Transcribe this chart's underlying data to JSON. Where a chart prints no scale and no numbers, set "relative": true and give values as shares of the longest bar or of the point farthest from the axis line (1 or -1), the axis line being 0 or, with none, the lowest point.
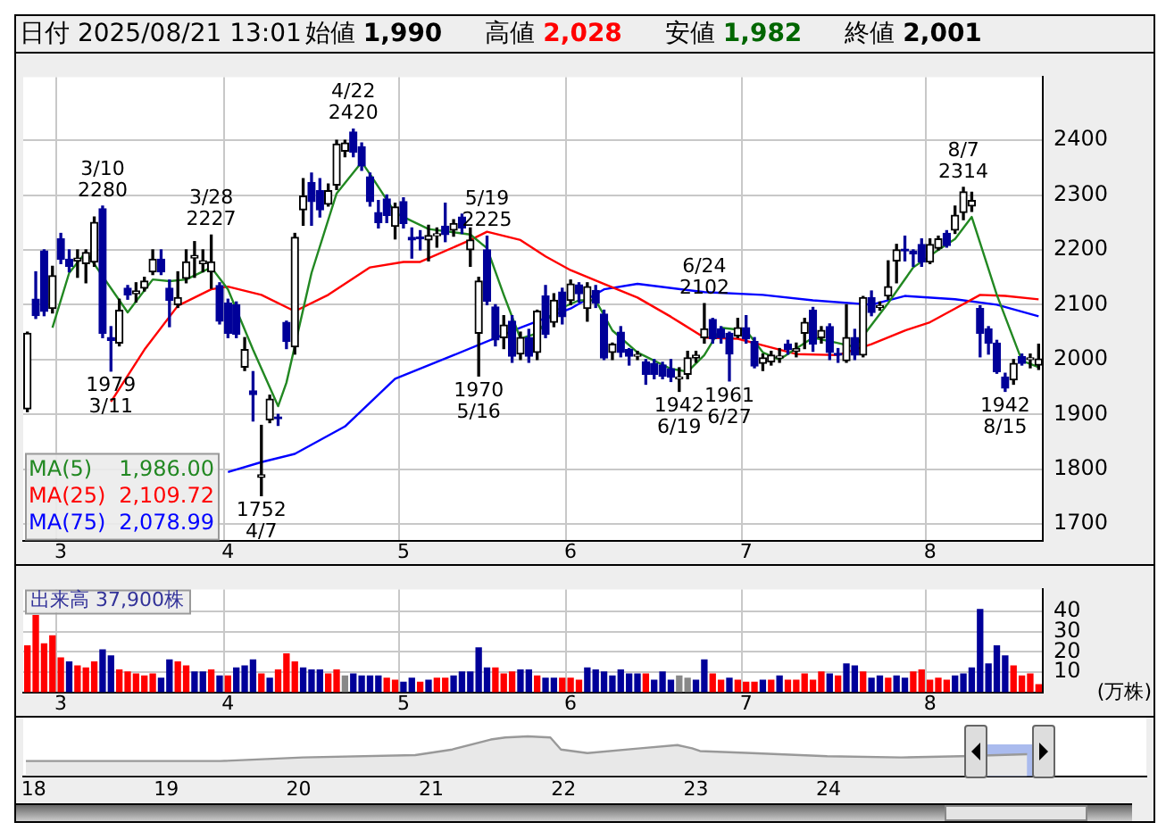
{
  "chart_data": [
    {
      "type": "candlestick",
      "title": "日付 2025/08/21 13:01",
      "categories": [
        null,
        null,
        null,
        null,
        "3",
        null,
        null,
        null,
        null,
        null,
        null,
        null,
        null,
        null,
        null,
        null,
        null,
        null,
        null,
        null,
        null,
        null,
        null,
        null,
        "4",
        null,
        null,
        null,
        null,
        null,
        null,
        null,
        null,
        null,
        null,
        null,
        null,
        null,
        null,
        null,
        null,
        null,
        null,
        null,
        null,
        "5",
        null,
        null,
        null,
        null,
        null,
        null,
        null,
        null,
        null,
        null,
        null,
        null,
        null,
        null,
        null,
        null,
        null,
        null,
        null,
        "6",
        null,
        null,
        null,
        null,
        null,
        null,
        null,
        null,
        null,
        null,
        null,
        null,
        null,
        null,
        null,
        null,
        null,
        null,
        null,
        null,
        "7",
        null,
        null,
        null,
        null,
        null,
        null,
        null,
        null,
        null,
        null,
        null,
        null,
        null,
        null,
        null,
        null,
        null,
        null,
        null,
        null,
        null,
        "8",
        null,
        null,
        null,
        null,
        null,
        null,
        null,
        null,
        null,
        null,
        null,
        null,
        null
      ],
      "ohlc": [
        [
          1910,
          2050,
          1905,
          2048
        ],
        [
          2110,
          2160,
          2075,
          2080
        ],
        [
          2198,
          2200,
          2080,
          2088
        ],
        [
          2093,
          2170,
          2085,
          2153
        ],
        [
          2220,
          2230,
          2175,
          2183
        ],
        [
          2183,
          2200,
          2160,
          2170
        ],
        [
          2180,
          2200,
          2150,
          2185
        ],
        [
          2175,
          2200,
          2140,
          2195
        ],
        [
          2178,
          2260,
          2170,
          2250
        ],
        [
          2275,
          2280,
          2040,
          2048
        ],
        [
          2040,
          2060,
          1979,
          2035
        ],
        [
          2030,
          2110,
          2025,
          2090
        ],
        [
          2130,
          2135,
          2110,
          2118
        ],
        [
          2120,
          2140,
          2105,
          2125
        ],
        [
          2130,
          2150,
          2125,
          2143
        ],
        [
          2160,
          2200,
          2155,
          2183
        ],
        [
          2183,
          2200,
          2155,
          2160
        ],
        [
          2130,
          2145,
          2060,
          2108
        ],
        [
          2100,
          2160,
          2095,
          2113
        ],
        [
          2148,
          2200,
          2140,
          2178
        ],
        [
          2185,
          2215,
          2150,
          2190
        ],
        [
          2175,
          2200,
          2160,
          2180
        ],
        [
          2160,
          2227,
          2130,
          2178
        ],
        [
          2135,
          2140,
          2065,
          2070
        ],
        [
          2103,
          2110,
          2040,
          2048
        ],
        [
          2100,
          2105,
          2040,
          2046
        ],
        [
          1986,
          2040,
          1980,
          2018
        ],
        [
          1943,
          1978,
          1888,
          1936
        ],
        [
          1785,
          1880,
          1752,
          1790
        ],
        [
          1890,
          1935,
          1885,
          1928
        ],
        [
          1895,
          1900,
          1880,
          1892
        ],
        [
          2068,
          2070,
          2020,
          2033
        ],
        [
          2023,
          2230,
          2010,
          2223
        ],
        [
          2273,
          2330,
          2245,
          2298
        ],
        [
          2323,
          2340,
          2245,
          2288
        ],
        [
          2308,
          2330,
          2260,
          2273
        ],
        [
          2283,
          2320,
          2280,
          2308
        ],
        [
          2318,
          2400,
          2310,
          2393
        ],
        [
          2380,
          2400,
          2370,
          2395
        ],
        [
          2415,
          2420,
          2370,
          2378
        ],
        [
          2388,
          2395,
          2345,
          2353
        ],
        [
          2333,
          2340,
          2280,
          2288
        ],
        [
          2268,
          2290,
          2240,
          2250
        ],
        [
          2293,
          2300,
          2250,
          2263
        ],
        [
          2243,
          2285,
          2220,
          2278
        ],
        [
          2288,
          2295,
          2240,
          2248
        ],
        [
          2223,
          2240,
          2185,
          2218
        ],
        [
          2222,
          2235,
          2200,
          2220
        ],
        [
          2218,
          2245,
          2180,
          2226
        ],
        [
          2226,
          2240,
          2205,
          2228
        ],
        [
          2243,
          2285,
          2215,
          2228
        ],
        [
          2236,
          2255,
          2225,
          2248
        ],
        [
          2260,
          2265,
          2230,
          2240
        ],
        [
          2200,
          2240,
          2170,
          2218
        ],
        [
          2048,
          2150,
          1970,
          2143
        ],
        [
          2200,
          2225,
          2100,
          2106
        ],
        [
          2096,
          2100,
          2025,
          2036
        ],
        [
          2040,
          2080,
          2020,
          2063
        ],
        [
          2070,
          2080,
          1995,
          2006
        ],
        [
          2010,
          2050,
          2000,
          2040
        ],
        [
          2040,
          2055,
          1995,
          2006
        ],
        [
          2013,
          2090,
          2000,
          2088
        ],
        [
          2116,
          2135,
          2040,
          2046
        ],
        [
          2068,
          2120,
          2060,
          2108
        ],
        [
          2123,
          2130,
          2065,
          2078
        ],
        [
          2108,
          2145,
          2100,
          2138
        ],
        [
          2136,
          2140,
          2105,
          2120
        ],
        [
          2093,
          2140,
          2070,
          2133
        ],
        [
          2126,
          2135,
          2095,
          2103
        ],
        [
          2083,
          2090,
          2000,
          2003
        ],
        [
          2013,
          2030,
          2000,
          2028
        ],
        [
          2050,
          2060,
          2005,
          2013
        ],
        [
          2018,
          2020,
          1990,
          2006
        ],
        [
          2006,
          2015,
          2000,
          2008
        ],
        [
          1996,
          2000,
          1955,
          1973
        ],
        [
          1993,
          2000,
          1965,
          1973
        ],
        [
          1990,
          1995,
          1965,
          1970
        ],
        [
          1983,
          2000,
          1960,
          1968
        ],
        [
          1965,
          1985,
          1942,
          1968
        ],
        [
          1973,
          2015,
          1965,
          2003
        ],
        [
          2003,
          2015,
          1995,
          2008
        ],
        [
          2040,
          2102,
          2030,
          2056
        ],
        [
          2073,
          2075,
          2030,
          2038
        ],
        [
          2056,
          2060,
          2030,
          2040
        ],
        [
          2048,
          2050,
          1961,
          2010
        ],
        [
          2043,
          2075,
          2040,
          2058
        ],
        [
          2058,
          2080,
          2030,
          2038
        ],
        [
          2033,
          2040,
          1985,
          1988
        ],
        [
          1993,
          2010,
          1980,
          2003
        ],
        [
          1996,
          2015,
          1990,
          2008
        ],
        [
          2003,
          2020,
          1995,
          2005
        ],
        [
          2028,
          2035,
          2010,
          2018
        ],
        [
          2015,
          2030,
          2005,
          2020
        ],
        [
          2048,
          2075,
          2020,
          2068
        ],
        [
          2090,
          2095,
          2015,
          2028
        ],
        [
          2040,
          2060,
          2030,
          2053
        ],
        [
          2060,
          2065,
          2000,
          2013
        ],
        [
          2010,
          2020,
          1995,
          2008
        ],
        [
          1998,
          2100,
          1995,
          2040
        ],
        [
          2040,
          2055,
          2000,
          2008
        ],
        [
          2008,
          2115,
          2005,
          2113
        ],
        [
          2113,
          2125,
          2080,
          2086
        ],
        [
          2095,
          2105,
          2090,
          2098
        ],
        [
          2116,
          2180,
          2110,
          2133
        ],
        [
          2180,
          2210,
          2140,
          2200
        ],
        [
          2200,
          2225,
          2180,
          2198
        ],
        [
          2198,
          2200,
          2170,
          2193
        ],
        [
          2210,
          2220,
          2170,
          2178
        ],
        [
          2178,
          2220,
          2175,
          2210
        ],
        [
          2203,
          2225,
          2200,
          2220
        ],
        [
          2230,
          2235,
          2205,
          2208
        ],
        [
          2236,
          2280,
          2230,
          2263
        ],
        [
          2268,
          2314,
          2255,
          2306
        ],
        [
          2280,
          2305,
          2270,
          2290
        ],
        [
          2093,
          2098,
          2005,
          2048
        ],
        [
          2056,
          2060,
          2010,
          2030
        ],
        [
          2030,
          2035,
          1975,
          1978
        ],
        [
          1968,
          1975,
          1942,
          1948
        ],
        [
          1963,
          2000,
          1955,
          1993
        ],
        [
          2005,
          2010,
          1990,
          1993
        ],
        [
          2000,
          2010,
          1985,
          2003
        ],
        [
          1990,
          2028,
          1982,
          2001
        ]
      ],
      "series": [
        {
          "type": "line",
          "name": "MA(5) 1,986.00",
          "color": "#228822",
          "values": [
            null,
            null,
            null,
            2058,
            null,
            2158,
            null,
            2196,
            null,
            null,
            null,
            null,
            2086,
            null,
            null,
            2146,
            null,
            2143,
            null,
            2146,
            null,
            null,
            2168,
            null,
            2128,
            null,
            null,
            2018,
            null,
            null,
            1915,
            1958,
            null,
            null,
            2158,
            null,
            null,
            2303,
            null,
            null,
            2360,
            2338,
            null,
            null,
            2268,
            2260,
            null,
            null,
            2238,
            null,
            null,
            null,
            null,
            2228,
            null,
            2203,
            null,
            2118,
            null,
            2038,
            null,
            2048,
            null,
            2088,
            null,
            null,
            2108,
            null,
            2108,
            null,
            2053,
            null,
            null,
            2013,
            null,
            null,
            null,
            1983,
            null,
            1978,
            null,
            2008,
            null,
            2058,
            null,
            null,
            2053,
            null,
            2013,
            null,
            2000,
            null,
            null,
            null,
            2040,
            null,
            null,
            2030,
            null,
            2023,
            null,
            null,
            null,
            2103,
            null,
            null,
            2168,
            null,
            null,
            2200,
            null,
            2220,
            null,
            2260,
            null,
            null,
            2118,
            null,
            null,
            1998,
            null,
            1986
          ]
        },
        {
          "type": "line",
          "name": "MA(25) 2,109.72",
          "color": "#ff0000",
          "values": [
            null,
            null,
            null,
            null,
            null,
            null,
            null,
            null,
            null,
            null,
            1923,
            null,
            null,
            null,
            2018,
            null,
            null,
            null,
            2098,
            null,
            null,
            null,
            2128,
            null,
            2133,
            null,
            null,
            null,
            2118,
            null,
            null,
            null,
            2088,
            null,
            null,
            null,
            2118,
            null,
            null,
            null,
            null,
            2168,
            null,
            null,
            null,
            2178,
            null,
            2178,
            null,
            null,
            null,
            null,
            null,
            2218,
            null,
            2233,
            null,
            null,
            null,
            2218,
            null,
            null,
            2188,
            null,
            null,
            2163,
            null,
            null,
            null,
            2138,
            null,
            null,
            null,
            2113,
            null,
            null,
            null,
            2078,
            null,
            null,
            null,
            2040,
            null,
            null,
            null,
            2038,
            null,
            null,
            2026,
            null,
            null,
            null,
            2010,
            null,
            null,
            null,
            null,
            2008,
            null,
            null,
            null,
            2028,
            null,
            null,
            null,
            2053,
            null,
            null,
            2068,
            null,
            null,
            2093,
            null,
            null,
            2118,
            null,
            null,
            2116,
            null,
            null,
            null,
            2109.72
          ]
        },
        {
          "type": "line",
          "name": "MA(75) 2,078.99",
          "color": "#0000ff",
          "values": [
            null,
            null,
            null,
            null,
            null,
            null,
            null,
            null,
            null,
            null,
            null,
            null,
            null,
            null,
            null,
            null,
            null,
            null,
            null,
            null,
            null,
            null,
            null,
            null,
            1795,
            null,
            null,
            null,
            1813,
            null,
            null,
            null,
            1828,
            null,
            null,
            null,
            null,
            null,
            1878,
            null,
            null,
            null,
            null,
            null,
            1965,
            null,
            null,
            null,
            null,
            null,
            null,
            2008,
            null,
            null,
            null,
            null,
            null,
            null,
            null,
            2058,
            null,
            null,
            null,
            null,
            null,
            2093,
            null,
            null,
            null,
            2128,
            null,
            null,
            null,
            2138,
            null,
            null,
            null,
            null,
            null,
            null,
            null,
            2123,
            null,
            null,
            null,
            null,
            null,
            null,
            2118,
            null,
            null,
            null,
            null,
            null,
            2108,
            null,
            null,
            null,
            null,
            null,
            null,
            2100,
            null,
            null,
            null,
            2116,
            null,
            null,
            null,
            null,
            null,
            2110,
            null,
            null,
            null,
            null,
            2100,
            null,
            null,
            null,
            null,
            2078.99
          ]
        }
      ],
      "annotations": [
        "始値 1,990",
        "高値 2,028",
        "安値 1,982",
        "終値 2,001",
        {
          "text": "3/10 2280",
          "y": 2280
        },
        {
          "text": "1979 3/11",
          "y": 1979
        },
        {
          "text": "3/28 2227",
          "y": 2227
        },
        {
          "text": "1752 4/7",
          "y": 1752
        },
        {
          "text": "4/22 2420",
          "y": 2420
        },
        {
          "text": "1970 5/16",
          "y": 1970
        },
        {
          "text": "5/19 2225",
          "y": 2225
        },
        {
          "text": "1942 6/19",
          "y": 1942
        },
        {
          "text": "6/24 2102",
          "y": 2102
        },
        {
          "text": "1961 6/27",
          "y": 1961
        },
        {
          "text": "8/7 2314",
          "y": 2314
        },
        {
          "text": "1942 8/15",
          "y": 1942
        }
      ],
      "ylim": [
        1670,
        2515
      ],
      "yticks": [
        1700,
        1800,
        1900,
        2000,
        2100,
        2200,
        2300,
        2400
      ],
      "grid": true,
      "legend": "bottom left"
    },
    {
      "type": "bar",
      "title": "出来高 37,900株",
      "ylabel": "(万株)",
      "categories": [
        null,
        null,
        null,
        null,
        "3",
        null,
        null,
        null,
        null,
        null,
        null,
        null,
        null,
        null,
        null,
        null,
        null,
        null,
        null,
        null,
        null,
        null,
        null,
        null,
        "4",
        null,
        null,
        null,
        null,
        null,
        null,
        null,
        null,
        null,
        null,
        null,
        null,
        null,
        null,
        null,
        null,
        null,
        null,
        null,
        null,
        "5",
        null,
        null,
        null,
        null,
        null,
        null,
        null,
        null,
        null,
        null,
        null,
        null,
        null,
        null,
        null,
        null,
        null,
        null,
        null,
        "6",
        null,
        null,
        null,
        null,
        null,
        null,
        null,
        null,
        null,
        null,
        null,
        null,
        null,
        null,
        null,
        null,
        null,
        null,
        null,
        null,
        "7",
        null,
        null,
        null,
        null,
        null,
        null,
        null,
        null,
        null,
        null,
        null,
        null,
        null,
        null,
        null,
        null,
        null,
        null,
        null,
        null,
        null,
        "8",
        null,
        null,
        null,
        null,
        null,
        null,
        null,
        null,
        null,
        null,
        null,
        null,
        null
      ],
      "values": [
        23,
        38,
        24,
        28,
        17,
        15,
        13,
        12,
        15,
        21,
        18,
        11,
        10,
        9,
        8,
        9,
        7,
        16,
        15,
        13,
        10,
        10,
        11,
        8,
        8,
        12,
        13,
        16,
        9,
        7,
        11,
        19,
        15,
        12,
        11,
        11,
        9,
        11,
        8,
        9,
        8,
        8,
        8,
        7,
        6,
        5,
        7,
        5,
        6,
        7,
        7,
        8,
        10,
        10,
        22,
        12,
        12,
        9,
        10,
        11,
        11,
        8,
        7,
        7,
        7,
        7,
        6,
        12,
        11,
        10,
        8,
        11,
        9,
        9,
        9,
        6,
        10,
        6,
        8,
        7,
        6,
        16,
        9,
        6,
        7,
        6,
        5,
        5,
        6,
        6,
        8,
        6,
        6,
        9,
        6,
        10,
        9,
        8,
        14,
        13,
        10,
        7,
        8,
        7,
        8,
        7,
        10,
        11,
        6,
        7,
        6,
        8,
        9,
        12,
        41,
        14,
        23,
        18,
        13,
        8,
        9,
        3.79
      ],
      "colors": [
        "#ff0000",
        "#ff0000",
        "#ff0000",
        "#ff0000",
        "#ff0000",
        "#000099",
        "#ff0000",
        "#ff0000",
        "#ff0000",
        "#000099",
        "#000099",
        "#ff0000",
        "#ff0000",
        "#ff0000",
        "#ff0000",
        "#ff0000",
        "#000099",
        "#000099",
        "#ff0000",
        "#ff0000",
        "#000099",
        "#000099",
        "#ff0000",
        "#000099",
        "#ff0000",
        "#000099",
        "#000099",
        "#000099",
        "#ff0000",
        "#000099",
        "#ff0000",
        "#ff0000",
        "#ff0000",
        "#000099",
        "#000099",
        "#000099",
        "#ff0000",
        "#ff0000",
        "#888888",
        "#000099",
        "#000099",
        "#000099",
        "#000099",
        "#ff0000",
        "#ff0000",
        "#000099",
        "#000099",
        "#ff0000",
        "#000099",
        "#ff0000",
        "#ff0000",
        "#000099",
        "#000099",
        "#000099",
        "#000099",
        "#000099",
        "#ff0000",
        "#ff0000",
        "#ff0000",
        "#000099",
        "#000099",
        "#ff0000",
        "#000099",
        "#000099",
        "#ff0000",
        "#ff0000",
        "#ff0000",
        "#000099",
        "#000099",
        "#000099",
        "#000099",
        "#000099",
        "#000099",
        "#000099",
        "#ff0000",
        "#000099",
        "#000099",
        "#000099",
        "#888888",
        "#888888",
        "#000099",
        "#000099",
        "#ff0000",
        "#ff0000",
        "#000099",
        "#ff0000",
        "#ff0000",
        "#ff0000",
        "#000099",
        "#ff0000",
        "#000099",
        "#ff0000",
        "#ff0000",
        "#ff0000",
        "#ff0000",
        "#ff0000",
        "#000099",
        "#ff0000",
        "#000099",
        "#000099",
        "#ff0000",
        "#000099",
        "#000099",
        "#ff0000",
        "#000099",
        "#000099",
        "#ff0000",
        "#ff0000",
        "#ff0000",
        "#ff0000",
        "#ff0000",
        "#000099",
        "#000099",
        "#000099",
        "#000099",
        "#000099",
        "#000099",
        "#000099",
        "#ff0000",
        "#ff0000",
        "#ff0000",
        "#ff0000"
      ],
      "ylim": [
        0,
        51
      ],
      "yticks": [
        10,
        20,
        30,
        40
      ],
      "grid": true
    },
    {
      "type": "area",
      "relative": true,
      "color": "#999999",
      "x": [
        17.94,
        19.41,
        20.03,
        20.88,
        21.16,
        21.45,
        21.56,
        21.73,
        21.9,
        21.98,
        22.18,
        22.58,
        22.86,
        22.97,
        23.03,
        23.42,
        23.99,
        24.55,
        25.0,
        25.5
      ],
      "values": [
        0.38,
        0.38,
        0.47,
        0.53,
        0.67,
        0.92,
        0.97,
        1,
        0.97,
        0.67,
        0.58,
        0.7,
        0.78,
        0.7,
        0.63,
        0.58,
        0.5,
        0.47,
        0.5,
        0.55
      ],
      "xlim": [
        17.92,
        26.4
      ],
      "xticks": [
        18,
        19,
        20,
        21,
        22,
        23,
        24
      ],
      "bands": [
        {
          "axis": "x",
          "from": 25.12,
          "to": 25.63,
          "color": "#aabbee"
        }
      ]
    }
  ]
}
